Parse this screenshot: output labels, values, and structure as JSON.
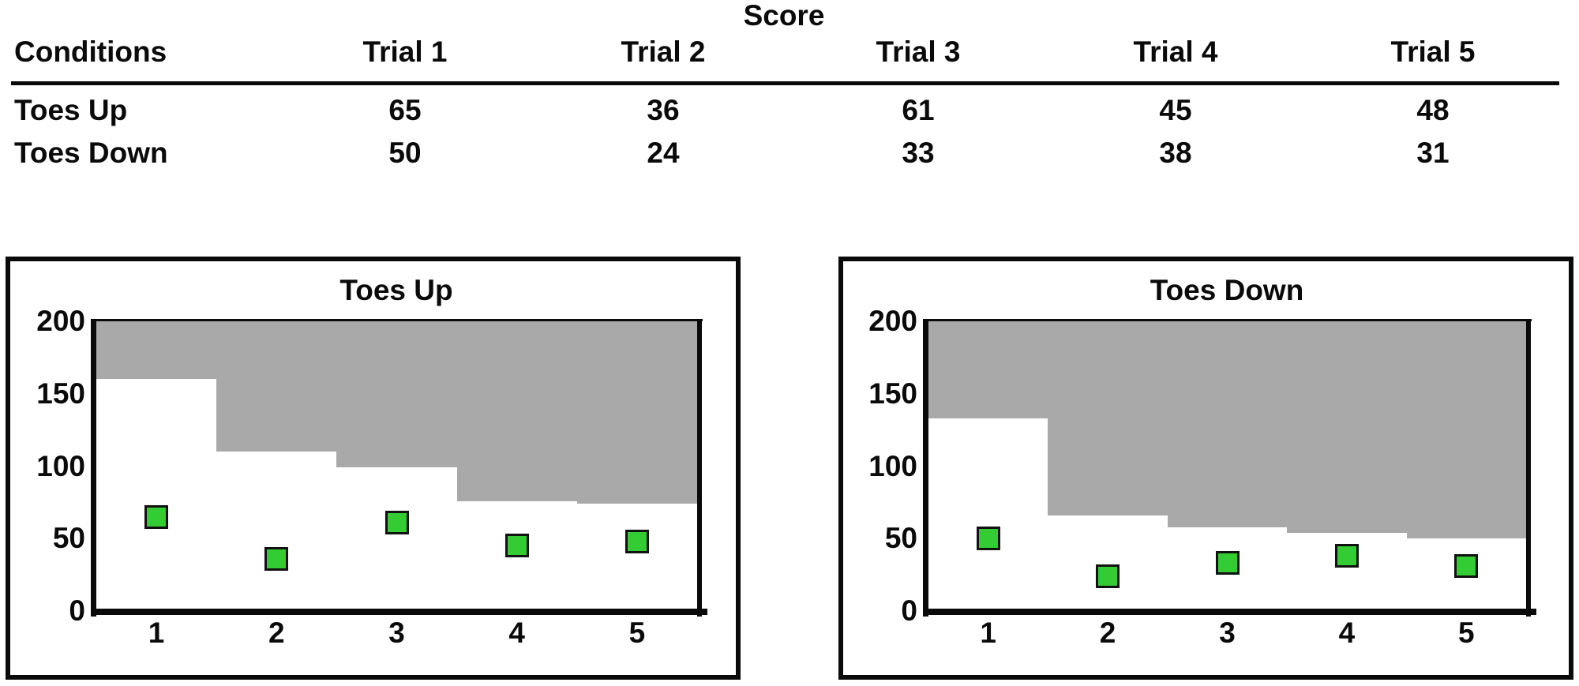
{
  "table": {
    "title": "Score",
    "conditions_header": "Conditions",
    "col_headers": [
      "Trial 1",
      "Trial 2",
      "Trial 3",
      "Trial 4",
      "Trial 5"
    ],
    "rows": [
      {
        "label": "Toes Up",
        "values": [
          "65",
          "36",
          "61",
          "45",
          "48"
        ]
      },
      {
        "label": "Toes Down",
        "values": [
          "50",
          "24",
          "33",
          "38",
          "31"
        ]
      }
    ]
  },
  "chart_data": [
    {
      "type": "scatter",
      "title": "Toes Up",
      "x": [
        1,
        2,
        3,
        4,
        5
      ],
      "x_tick_labels": [
        "1",
        "2",
        "3",
        "4",
        "5"
      ],
      "values": [
        65,
        36,
        61,
        45,
        48
      ],
      "ylim": [
        0,
        200
      ],
      "yticks": [
        0,
        50,
        100,
        150,
        200
      ],
      "grid": false,
      "legend": "none",
      "marker": {
        "shape": "square",
        "fill": "#33cc33",
        "border": "#111111"
      },
      "ceiling_region": {
        "color": "#a9a9a9",
        "upper": 200,
        "lower_bounds_per_trial": [
          160,
          110,
          99,
          76,
          74
        ]
      }
    },
    {
      "type": "scatter",
      "title": "Toes Down",
      "x": [
        1,
        2,
        3,
        4,
        5
      ],
      "x_tick_labels": [
        "1",
        "2",
        "3",
        "4",
        "5"
      ],
      "values": [
        50,
        24,
        33,
        38,
        31
      ],
      "ylim": [
        0,
        200
      ],
      "yticks": [
        0,
        50,
        100,
        150,
        200
      ],
      "grid": false,
      "legend": "none",
      "marker": {
        "shape": "square",
        "fill": "#33cc33",
        "border": "#111111"
      },
      "ceiling_region": {
        "color": "#a9a9a9",
        "upper": 200,
        "lower_bounds_per_trial": [
          133,
          66,
          58,
          54,
          50
        ]
      }
    }
  ],
  "colors": {
    "ink": "#0a0a0a",
    "marker_green": "#33cc33",
    "ceiling_gray": "#a9a9a9",
    "background": "#ffffff"
  }
}
